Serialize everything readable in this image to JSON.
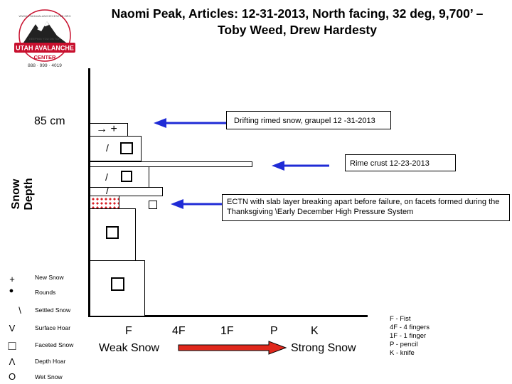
{
  "title": {
    "line1": "Naomi Peak, Articles:  12-31-2013, North facing, 32 deg, 9,700’ –",
    "line2": "Toby Weed, Drew Hardesty"
  },
  "logo": {
    "top_text": "WWW.UTAHAVALANCHECENTER.ORG",
    "tagline": "KEEPING YOU ON TOP",
    "name1": "UTAH AVALANCHE",
    "name2": "CENTER",
    "phone": "888 · 999 · 4019"
  },
  "y_axis": {
    "label": "Snow Depth",
    "depth_marker": "85 cm"
  },
  "layers": [
    {
      "id": "top",
      "symbol_text": "→  +",
      "symbol_kind": "text"
    },
    {
      "id": "l2",
      "symbol_text": "/",
      "symbol_kind": "slash-box"
    },
    {
      "id": "rime",
      "symbol_text": "",
      "symbol_kind": "none"
    },
    {
      "id": "l4",
      "symbol_text": "/",
      "symbol_kind": "slash-box"
    },
    {
      "id": "l5",
      "symbol_text": "/",
      "symbol_kind": "slash"
    },
    {
      "id": "weak",
      "symbol_text": "",
      "symbol_kind": "pattern"
    },
    {
      "id": "l7",
      "symbol_text": "",
      "symbol_kind": "box"
    },
    {
      "id": "l8",
      "symbol_text": "",
      "symbol_kind": "box"
    }
  ],
  "callouts": {
    "drifting": "Drifting rimed snow, graupel  12 -31-2013",
    "rime": "Rime crust 12-23-2013",
    "ectn": "ECTN with slab layer breaking apart before failure, on facets formed during the Thanksgiving \\Early December High Pressure System"
  },
  "hardness_scale": [
    "F",
    "4F",
    "1F",
    "P",
    "K"
  ],
  "scale_labels": {
    "weak": "Weak Snow",
    "strong": "Strong Snow"
  },
  "hardness_key": [
    "F - Fist",
    "4F - 4 fingers",
    "1F - 1 finger",
    "P - pencil",
    "K - knife"
  ],
  "legend": [
    {
      "symbol": "+",
      "label": "New Snow"
    },
    {
      "symbol": "●",
      "label": "Rounds"
    },
    {
      "symbol": "\\",
      "label": "Settled Snow"
    },
    {
      "symbol": "V",
      "label": "Surface Hoar"
    },
    {
      "symbol": "□",
      "label": "Faceted Snow"
    },
    {
      "symbol": "Λ",
      "label": "Depth Hoar"
    },
    {
      "symbol": "O",
      "label": "Wet Snow"
    }
  ],
  "colors": {
    "arrow_blue": "#1f2bd6",
    "arrow_red": "#e0281c",
    "weak_layer_red": "#d81f26",
    "logo_red": "#c8102e"
  }
}
